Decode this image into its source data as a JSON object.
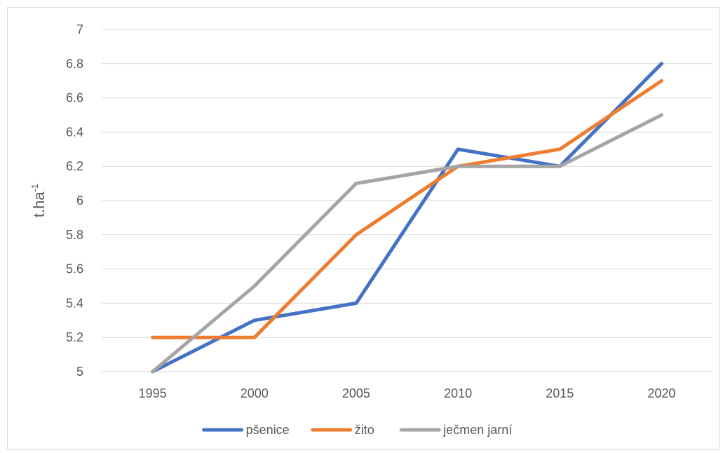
{
  "chart_data": {
    "type": "line",
    "title": "",
    "xlabel": "",
    "ylabel": "t.ha",
    "ylabel_superscript": "-1",
    "categories": [
      "1995",
      "2000",
      "2005",
      "2010",
      "2015",
      "2020"
    ],
    "ylim": [
      5,
      7
    ],
    "ytick_step": 0.2,
    "yticks": [
      "5",
      "5.2",
      "5.4",
      "5.6",
      "5.8",
      "6",
      "6.2",
      "6.4",
      "6.6",
      "6.8",
      "7"
    ],
    "grid": true,
    "legend_position": "bottom",
    "series": [
      {
        "name": "pšenice",
        "color": "#4472c4",
        "values": [
          5.0,
          5.3,
          5.4,
          6.3,
          6.2,
          6.8
        ]
      },
      {
        "name": "žito",
        "color": "#ed7d31",
        "values": [
          5.2,
          5.2,
          5.8,
          6.2,
          6.3,
          6.7
        ]
      },
      {
        "name": "ječmen jarní",
        "color": "#a5a5a5",
        "values": [
          5.0,
          5.5,
          6.1,
          6.2,
          6.2,
          6.5
        ]
      }
    ]
  }
}
